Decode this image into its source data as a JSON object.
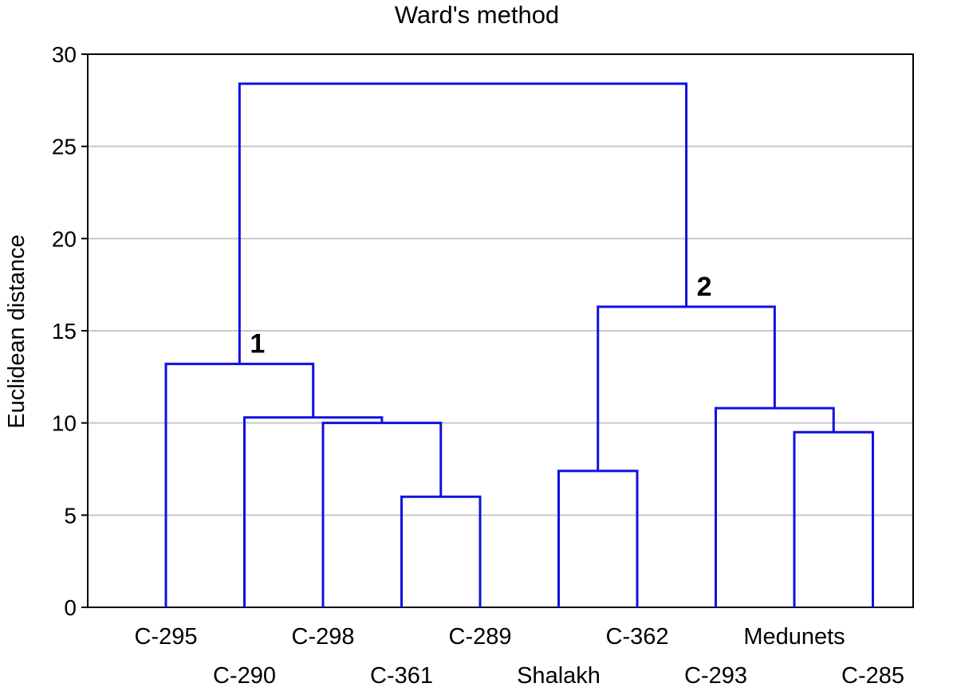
{
  "chart_data": {
    "type": "dendrogram",
    "title": "Ward's method",
    "ylabel": "Euclidean distance",
    "xlabel": "",
    "ylim": [
      0,
      30
    ],
    "yticks": [
      0,
      5,
      10,
      15,
      20,
      25,
      30
    ],
    "grid": true,
    "line_color": "#1010e0",
    "grid_color": "#c8c8c8",
    "leaves": [
      "C-295",
      "C-290",
      "C-298",
      "C-361",
      "C-289",
      "Shalakh",
      "C-362",
      "C-293",
      "Medunets",
      "C-285"
    ],
    "merges": [
      {
        "id": "m1",
        "left": "C-361",
        "right": "C-289",
        "height": 6.0
      },
      {
        "id": "m2",
        "left": "Shalakh",
        "right": "C-362",
        "height": 7.4
      },
      {
        "id": "m3",
        "left": "Medunets",
        "right": "C-285",
        "height": 9.5
      },
      {
        "id": "m4",
        "left": "C-298",
        "right": "m1",
        "height": 10.0
      },
      {
        "id": "m5",
        "left": "C-290",
        "right": "m4",
        "height": 10.3
      },
      {
        "id": "m6",
        "left": "C-293",
        "right": "m3",
        "height": 10.8
      },
      {
        "id": "m7",
        "left": "C-295",
        "right": "m5",
        "height": 13.2
      },
      {
        "id": "m8",
        "left": "m2",
        "right": "m6",
        "height": 16.3
      },
      {
        "id": "m9",
        "left": "m7",
        "right": "m8",
        "height": 28.4
      }
    ],
    "annotations": [
      {
        "text": "1",
        "merge": "m7"
      },
      {
        "text": "2",
        "merge": "m8"
      }
    ]
  }
}
